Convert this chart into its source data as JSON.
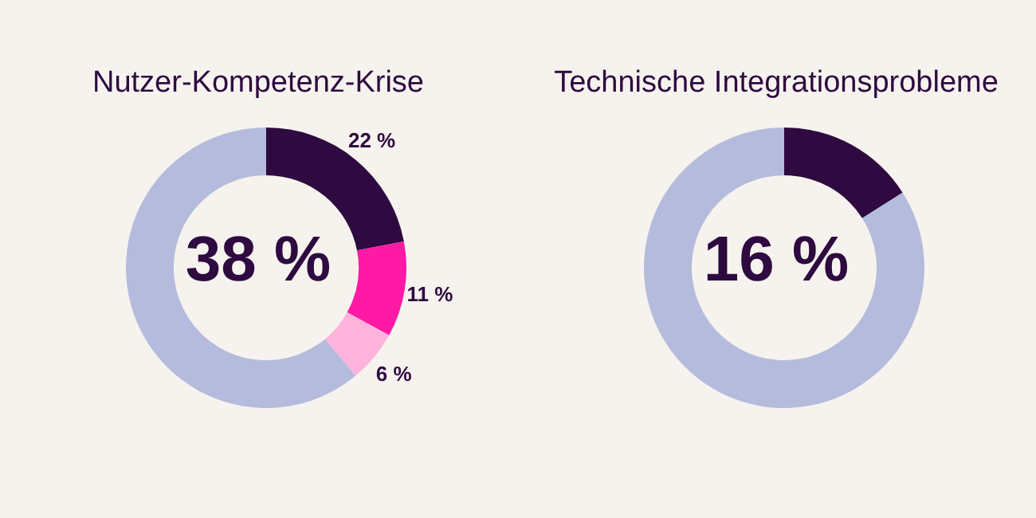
{
  "chart_data": [
    {
      "type": "donut",
      "title": "Nutzer-Kompetenz-Krise",
      "categories": [
        null,
        null,
        null,
        null
      ],
      "values": [
        22,
        11,
        6,
        61
      ],
      "colors": [
        "#2e0a40",
        "#ff1aa6",
        "#ffb3dc",
        "#b5bbdc"
      ],
      "value_labels": [
        "22 %",
        "11 %",
        "6 %",
        null
      ],
      "annotations": [
        "38 %"
      ]
    },
    {
      "type": "donut",
      "title": "Technische Integrationsprobleme",
      "categories": [
        null,
        null
      ],
      "values": [
        16,
        84
      ],
      "colors": [
        "#2e0a40",
        "#b5bbdc"
      ],
      "annotations": [
        "16 %"
      ]
    }
  ]
}
